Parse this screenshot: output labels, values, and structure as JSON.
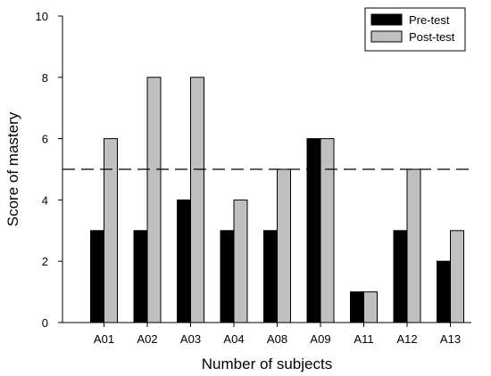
{
  "chart_data": {
    "type": "bar",
    "title": "",
    "xlabel": "Number of subjects",
    "ylabel": "Score of mastery",
    "categories": [
      "A01",
      "A02",
      "A03",
      "A04",
      "A08",
      "A09",
      "A11",
      "A12",
      "A13"
    ],
    "series": [
      {
        "name": "Pre-test",
        "values": [
          3,
          3,
          4,
          3,
          3,
          6,
          1,
          3,
          2
        ],
        "color": "#000000"
      },
      {
        "name": "Post-test",
        "values": [
          6,
          8,
          8,
          4,
          5,
          6,
          1,
          5,
          3
        ],
        "color": "#c0c0c0"
      }
    ],
    "ylim": [
      0,
      10
    ],
    "yticks": [
      0,
      2,
      4,
      6,
      8,
      10
    ],
    "reference_line": {
      "y": 5,
      "style": "dashed"
    },
    "grid": false,
    "legend_position": "top-right"
  }
}
